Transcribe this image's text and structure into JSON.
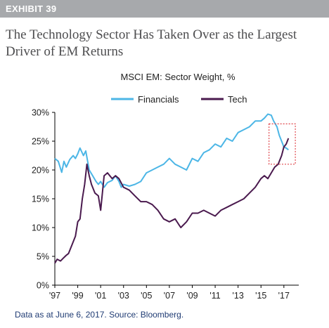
{
  "exhibit": {
    "label": "EXHIBIT 39"
  },
  "headline": "The Technology Sector Has Taken Over as the Largest Driver of EM Returns",
  "source": "Data as at June 6, 2017. Source: Bloomberg.",
  "colors": {
    "financials": "#4cb6e6",
    "tech": "#4a1a4e",
    "highlight": "#e0474c",
    "header": "#a7a9ac",
    "source_text": "#1f3b73"
  },
  "chart_data": {
    "type": "line",
    "title": "MSCI EM: Sector Weight, %",
    "xlabel": "",
    "ylabel": "",
    "xlim": [
      1997.0,
      2018.3
    ],
    "ylim": [
      0,
      30
    ],
    "grid": false,
    "legend": "top",
    "x_tick_values": [
      1997,
      1999,
      2001,
      2003,
      2005,
      2007,
      2009,
      2011,
      2013,
      2015,
      2017
    ],
    "x_tick_labels": [
      "'97",
      "'99",
      "'01",
      "'03",
      "'05",
      "'07",
      "'09",
      "'11",
      "'13",
      "'15",
      "'17"
    ],
    "y_tick_values": [
      0,
      5,
      10,
      15,
      20,
      25,
      30
    ],
    "y_tick_labels": [
      "0%",
      "5%",
      "10%",
      "15%",
      "20%",
      "25%",
      "30%"
    ],
    "series": [
      {
        "name": "Financials",
        "x": [
          1997.0,
          1997.3,
          1997.6,
          1997.8,
          1998.0,
          1998.3,
          1998.6,
          1998.8,
          1999.0,
          1999.2,
          1999.5,
          1999.7,
          2000.0,
          2000.3,
          2000.6,
          2000.8,
          2001.0,
          2001.3,
          2001.6,
          2002.0,
          2002.3,
          2002.6,
          2002.8,
          2003.0,
          2003.5,
          2004.0,
          2004.5,
          2005.0,
          2005.5,
          2006.0,
          2006.5,
          2007.0,
          2007.5,
          2008.0,
          2008.5,
          2009.0,
          2009.5,
          2010.0,
          2010.5,
          2011.0,
          2011.5,
          2012.0,
          2012.5,
          2013.0,
          2013.5,
          2014.0,
          2014.5,
          2015.0,
          2015.3,
          2015.6,
          2015.9,
          2016.1,
          2016.4,
          2016.6,
          2016.8,
          2017.0,
          2017.2,
          2017.4
        ],
        "y": [
          22.0,
          21.5,
          19.6,
          21.5,
          20.5,
          21.8,
          22.5,
          22.0,
          22.8,
          23.8,
          22.5,
          23.3,
          20.0,
          19.0,
          18.0,
          17.5,
          18.0,
          17.0,
          17.8,
          18.2,
          19.0,
          18.0,
          17.0,
          17.5,
          17.2,
          17.5,
          18.0,
          19.5,
          20.0,
          20.5,
          21.0,
          22.0,
          21.0,
          20.5,
          20.0,
          22.0,
          21.5,
          23.0,
          23.5,
          24.5,
          24.0,
          25.5,
          25.0,
          26.5,
          27.0,
          27.5,
          28.5,
          28.5,
          29.0,
          29.7,
          29.5,
          28.5,
          27.5,
          26.0,
          25.0,
          24.0,
          23.8,
          23.5
        ]
      },
      {
        "name": "Tech",
        "x": [
          1997.0,
          1997.2,
          1997.5,
          1997.8,
          1998.0,
          1998.2,
          1998.5,
          1998.8,
          1999.0,
          1999.2,
          1999.4,
          1999.6,
          1999.8,
          2000.0,
          2000.2,
          2000.5,
          2000.8,
          2001.0,
          2001.3,
          2001.6,
          2002.0,
          2002.3,
          2002.6,
          2003.0,
          2003.5,
          2004.0,
          2004.5,
          2005.0,
          2005.5,
          2006.0,
          2006.5,
          2007.0,
          2007.5,
          2008.0,
          2008.5,
          2009.0,
          2009.5,
          2010.0,
          2010.5,
          2011.0,
          2011.5,
          2012.0,
          2012.5,
          2013.0,
          2013.5,
          2014.0,
          2014.5,
          2015.0,
          2015.3,
          2015.6,
          2015.9,
          2016.2,
          2016.5,
          2016.8,
          2017.0,
          2017.2,
          2017.4
        ],
        "y": [
          3.8,
          4.5,
          4.2,
          4.8,
          5.2,
          5.5,
          7.0,
          8.5,
          11.0,
          11.5,
          15.0,
          17.5,
          21.0,
          19.0,
          17.5,
          16.0,
          15.5,
          13.0,
          19.0,
          19.5,
          18.5,
          19.0,
          18.5,
          17.0,
          16.5,
          15.5,
          14.5,
          14.5,
          14.0,
          13.0,
          11.5,
          11.0,
          11.5,
          10.0,
          11.0,
          12.5,
          12.5,
          13.0,
          12.5,
          12.0,
          13.0,
          13.5,
          14.0,
          14.5,
          15.0,
          16.0,
          17.0,
          18.5,
          19.0,
          18.5,
          19.5,
          20.5,
          21.0,
          22.5,
          24.0,
          24.5,
          25.5
        ]
      }
    ],
    "annotation": {
      "type": "dashed-box",
      "x": [
        2015.7,
        2018.0
      ],
      "y": [
        21.0,
        28.0
      ]
    }
  }
}
